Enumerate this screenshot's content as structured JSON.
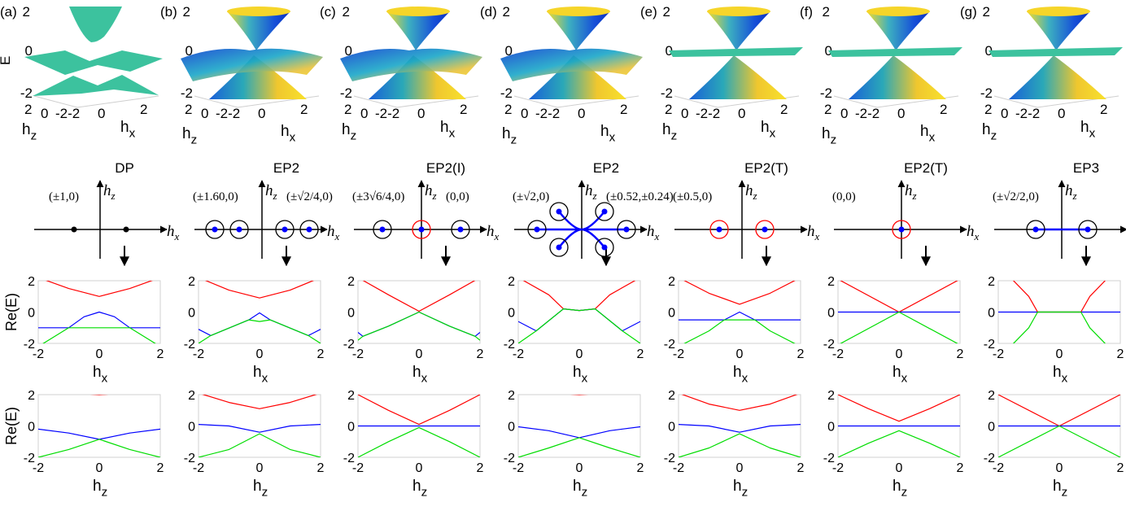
{
  "panels": [
    {
      "label": "(a)",
      "type": "DP",
      "coords": [
        "(±1,0)"
      ]
    },
    {
      "label": "(b)",
      "type": "EP2",
      "coords": [
        "(±1.60,0)",
        "(±√2/4,0)"
      ]
    },
    {
      "label": "(c)",
      "type": "EP2(I)",
      "coords": [
        "(±3√6/4,0)",
        "(0,0)"
      ]
    },
    {
      "label": "(d)",
      "type": "EP2",
      "coords": [
        "(±√2,0)",
        "(±0.52,±0.24)"
      ]
    },
    {
      "label": "(e)",
      "type": "EP2(T)",
      "coords": [
        "(±0.5,0)"
      ]
    },
    {
      "label": "(f)",
      "type": "EP2(T)",
      "coords": [
        "(0,0)"
      ]
    },
    {
      "label": "(g)",
      "type": "EP3",
      "coords": [
        "(±√2/2,0)"
      ]
    }
  ],
  "labels": {
    "E": "E",
    "ReE": "Re(E)",
    "hx": "h",
    "hx_sub": "x",
    "hz": "h",
    "hz_sub": "z",
    "ticks": [
      "-2",
      "0",
      "2"
    ],
    "surf_x_ticks": [
      "-2",
      "0",
      "2"
    ],
    "surf_z_ticks": [
      "2",
      "0",
      "-2"
    ]
  },
  "colors": {
    "upper": "#ff0000",
    "middle": "#0000ff",
    "lower": "#00dd00",
    "teal": "#3cc29e",
    "ep": "#ff0000",
    "point": "#0000ff"
  },
  "chart_data": [
    {
      "type": "line",
      "panel": "(a)",
      "xlabel": "hx",
      "ylabel": "Re(E)",
      "xlim": [
        -2,
        2
      ],
      "ylim": [
        -2,
        2
      ],
      "series": [
        {
          "x": [
            -2,
            -1,
            0,
            1,
            2
          ],
          "values": [
            2.2,
            1.5,
            1.0,
            1.5,
            2.2
          ]
        },
        {
          "x": [
            -2,
            -1,
            -0.5,
            0,
            0.5,
            1,
            2
          ],
          "values": [
            -1,
            -1,
            -0.3,
            0,
            -0.3,
            -1,
            -1
          ]
        },
        {
          "x": [
            -2,
            -1,
            0,
            1,
            2
          ],
          "values": [
            -2.2,
            -1,
            -1,
            -1,
            -2.2
          ]
        }
      ]
    },
    {
      "type": "line",
      "panel": "(b)",
      "xlabel": "hx",
      "ylabel": "Re(E)",
      "xlim": [
        -2,
        2
      ],
      "ylim": [
        -2,
        2
      ],
      "series": [
        {
          "x": [
            -2,
            -1,
            0,
            1,
            2
          ],
          "values": [
            2.2,
            1.4,
            0.9,
            1.4,
            2.2
          ]
        },
        {
          "x": [
            -2,
            -1.6,
            -0.35,
            0,
            0.35,
            1.6,
            2
          ],
          "values": [
            -1.1,
            -1.5,
            -0.5,
            -0.05,
            -0.5,
            -1.5,
            -1.1
          ]
        },
        {
          "x": [
            -2,
            -1.6,
            -0.35,
            0,
            0.35,
            1.6,
            2
          ],
          "values": [
            -2,
            -1.5,
            -0.5,
            -0.6,
            -0.5,
            -1.5,
            -2
          ]
        }
      ]
    },
    {
      "type": "line",
      "panel": "(c)",
      "xlabel": "hx",
      "ylabel": "Re(E)",
      "xlim": [
        -2,
        2
      ],
      "ylim": [
        -2,
        2
      ],
      "series": [
        {
          "x": [
            -2,
            -1,
            0,
            1,
            2
          ],
          "values": [
            2.2,
            1.1,
            0.05,
            1.1,
            2.2
          ]
        },
        {
          "x": [
            -2,
            -1.84,
            -1,
            0,
            1,
            1.84,
            2
          ],
          "values": [
            -1.3,
            -1.55,
            -0.9,
            0,
            -0.9,
            -1.55,
            -1.3
          ]
        },
        {
          "x": [
            -2,
            -1.84,
            -1,
            0,
            1,
            1.84,
            2
          ],
          "values": [
            -1.8,
            -1.55,
            -0.9,
            0,
            -0.9,
            -1.55,
            -1.8
          ]
        }
      ]
    },
    {
      "type": "line",
      "panel": "(d)",
      "xlabel": "hx",
      "ylabel": "Re(E)",
      "xlim": [
        -2,
        2
      ],
      "ylim": [
        -2,
        2
      ],
      "series": [
        {
          "x": [
            -2,
            -1,
            -0.52,
            0,
            0.52,
            1,
            2
          ],
          "values": [
            2.2,
            1.1,
            0.2,
            0.1,
            0.2,
            1.1,
            2.2
          ]
        },
        {
          "x": [
            -2,
            -1.41,
            -0.52,
            0,
            0.52,
            1.41,
            2
          ],
          "values": [
            -0.6,
            -1.2,
            0.2,
            0.1,
            0.2,
            -1.2,
            -0.6
          ]
        },
        {
          "x": [
            -2,
            -1.41,
            -0.52,
            0,
            0.52,
            1.41,
            2
          ],
          "values": [
            -2,
            -1.2,
            0.2,
            0.1,
            0.2,
            -1.2,
            -2
          ]
        }
      ]
    },
    {
      "type": "line",
      "panel": "(e)",
      "xlabel": "hx",
      "ylabel": "Re(E)",
      "xlim": [
        -2,
        2
      ],
      "ylim": [
        -2,
        2
      ],
      "series": [
        {
          "x": [
            -2,
            -1,
            0,
            1,
            2
          ],
          "values": [
            2.2,
            1.2,
            0.5,
            1.2,
            2.2
          ]
        },
        {
          "x": [
            -2,
            -0.5,
            0,
            0.5,
            2
          ],
          "values": [
            -0.5,
            -0.5,
            0,
            -0.5,
            -0.5
          ]
        },
        {
          "x": [
            -2,
            -1,
            -0.5,
            0,
            0.5,
            1,
            2
          ],
          "values": [
            -2.2,
            -1.2,
            -0.5,
            -0.5,
            -0.5,
            -1.2,
            -2.2
          ]
        }
      ]
    },
    {
      "type": "line",
      "panel": "(f)",
      "xlabel": "hx",
      "ylabel": "Re(E)",
      "xlim": [
        -2,
        2
      ],
      "ylim": [
        -2,
        2
      ],
      "series": [
        {
          "x": [
            -2,
            0,
            2
          ],
          "values": [
            2.1,
            0,
            2.1
          ]
        },
        {
          "x": [
            -2,
            0,
            2
          ],
          "values": [
            0,
            0,
            0
          ]
        },
        {
          "x": [
            -2,
            0,
            2
          ],
          "values": [
            -2.1,
            0,
            -2.1
          ]
        }
      ]
    },
    {
      "type": "line",
      "panel": "(g)",
      "xlabel": "hx",
      "ylabel": "Re(E)",
      "xlim": [
        -2,
        2
      ],
      "ylim": [
        -2,
        2
      ],
      "series": [
        {
          "x": [
            -2,
            -1,
            -0.71,
            0,
            0.71,
            1,
            2
          ],
          "values": [
            0,
            0,
            0,
            0,
            0,
            0,
            0
          ]
        },
        {
          "x": [
            -1.6,
            -1,
            -0.71,
            0,
            0.71,
            1,
            1.6
          ],
          "values": [
            2.2,
            1,
            0,
            0,
            0,
            1,
            2.2
          ]
        },
        {
          "x": [
            -1.6,
            -1,
            -0.71,
            0,
            0.71,
            1,
            1.6
          ],
          "values": [
            -2.2,
            -1,
            0,
            0,
            0,
            -1,
            -2.2
          ]
        }
      ]
    },
    {
      "type": "line",
      "panel": "(a)",
      "xlabel": "hz",
      "ylabel": "Re(E)",
      "xlim": [
        -2,
        2
      ],
      "ylim": [
        -2,
        2
      ],
      "series": [
        {
          "x": [
            -0.5,
            0,
            0.5
          ],
          "values": [
            2.05,
            2,
            2.05
          ]
        },
        {
          "x": [
            -2,
            -1,
            0,
            1,
            2
          ],
          "values": [
            -0.2,
            -0.45,
            -0.85,
            -0.45,
            -0.2
          ]
        },
        {
          "x": [
            -2,
            -1,
            0,
            1,
            2
          ],
          "values": [
            -2,
            -1.5,
            -0.85,
            -1.5,
            -2
          ]
        }
      ]
    },
    {
      "type": "line",
      "panel": "(b)",
      "xlabel": "hz",
      "ylabel": "Re(E)",
      "xlim": [
        -2,
        2
      ],
      "ylim": [
        -2,
        2
      ],
      "series": [
        {
          "x": [
            -2,
            -1,
            0,
            1,
            2
          ],
          "values": [
            2.1,
            1.5,
            1.1,
            1.5,
            2.1
          ]
        },
        {
          "x": [
            -2,
            -1,
            0,
            1,
            2
          ],
          "values": [
            0.1,
            0,
            -0.4,
            0,
            0.1
          ]
        },
        {
          "x": [
            -2,
            -1,
            0,
            1,
            2
          ],
          "values": [
            -2,
            -1.5,
            -0.5,
            -1.5,
            -2
          ]
        }
      ]
    },
    {
      "type": "line",
      "panel": "(c)",
      "xlabel": "hz",
      "ylabel": "Re(E)",
      "xlim": [
        -2,
        2
      ],
      "ylim": [
        -2,
        2
      ],
      "series": [
        {
          "x": [
            -2,
            -1,
            0,
            1,
            2
          ],
          "values": [
            2,
            1,
            0.1,
            1,
            2
          ]
        },
        {
          "x": [
            -2,
            0,
            2
          ],
          "values": [
            0,
            0,
            0
          ]
        },
        {
          "x": [
            -2,
            -1,
            0,
            1,
            2
          ],
          "values": [
            -2,
            -1,
            -0.1,
            -1,
            -2
          ]
        }
      ]
    },
    {
      "type": "line",
      "panel": "(d)",
      "xlabel": "hz",
      "ylabel": "Re(E)",
      "xlim": [
        -2,
        2
      ],
      "ylim": [
        -2,
        2
      ],
      "series": [
        {
          "x": [
            -0.5,
            0,
            0.5
          ],
          "values": [
            2.05,
            2,
            2.05
          ]
        },
        {
          "x": [
            -2,
            -1,
            0,
            1,
            2
          ],
          "values": [
            -0.05,
            -0.3,
            -0.75,
            -0.3,
            -0.05
          ]
        },
        {
          "x": [
            -2,
            -1,
            0,
            1,
            2
          ],
          "values": [
            -2,
            -1.4,
            -0.75,
            -1.4,
            -2
          ]
        }
      ]
    },
    {
      "type": "line",
      "panel": "(e)",
      "xlabel": "hz",
      "ylabel": "Re(E)",
      "xlim": [
        -2,
        2
      ],
      "ylim": [
        -2,
        2
      ],
      "series": [
        {
          "x": [
            -2,
            -1,
            0,
            1,
            2
          ],
          "values": [
            2.1,
            1.4,
            1.0,
            1.4,
            2.1
          ]
        },
        {
          "x": [
            -2,
            -1,
            0,
            1,
            2
          ],
          "values": [
            0.1,
            0,
            -0.4,
            0,
            0.1
          ]
        },
        {
          "x": [
            -2,
            -1,
            0,
            1,
            2
          ],
          "values": [
            -2,
            -1.4,
            -0.5,
            -1.4,
            -2
          ]
        }
      ]
    },
    {
      "type": "line",
      "panel": "(f)",
      "xlabel": "hz",
      "ylabel": "Re(E)",
      "xlim": [
        -2,
        2
      ],
      "ylim": [
        -2,
        2
      ],
      "series": [
        {
          "x": [
            -2,
            -1,
            0,
            1,
            2
          ],
          "values": [
            2,
            1.1,
            0.3,
            1.1,
            2
          ]
        },
        {
          "x": [
            -2,
            0,
            2
          ],
          "values": [
            0,
            0,
            0
          ]
        },
        {
          "x": [
            -2,
            -1,
            0,
            1,
            2
          ],
          "values": [
            -2,
            -1.1,
            -0.3,
            -1.1,
            -2
          ]
        }
      ]
    },
    {
      "type": "line",
      "panel": "(g)",
      "xlabel": "hz",
      "ylabel": "Re(E)",
      "xlim": [
        -2,
        2
      ],
      "ylim": [
        -2,
        2
      ],
      "series": [
        {
          "x": [
            -2,
            0,
            2
          ],
          "values": [
            2,
            0,
            2
          ]
        },
        {
          "x": [
            -2,
            0,
            2
          ],
          "values": [
            0,
            0,
            0
          ]
        },
        {
          "x": [
            -2,
            0,
            2
          ],
          "values": [
            -2,
            0,
            -2
          ]
        }
      ]
    }
  ]
}
